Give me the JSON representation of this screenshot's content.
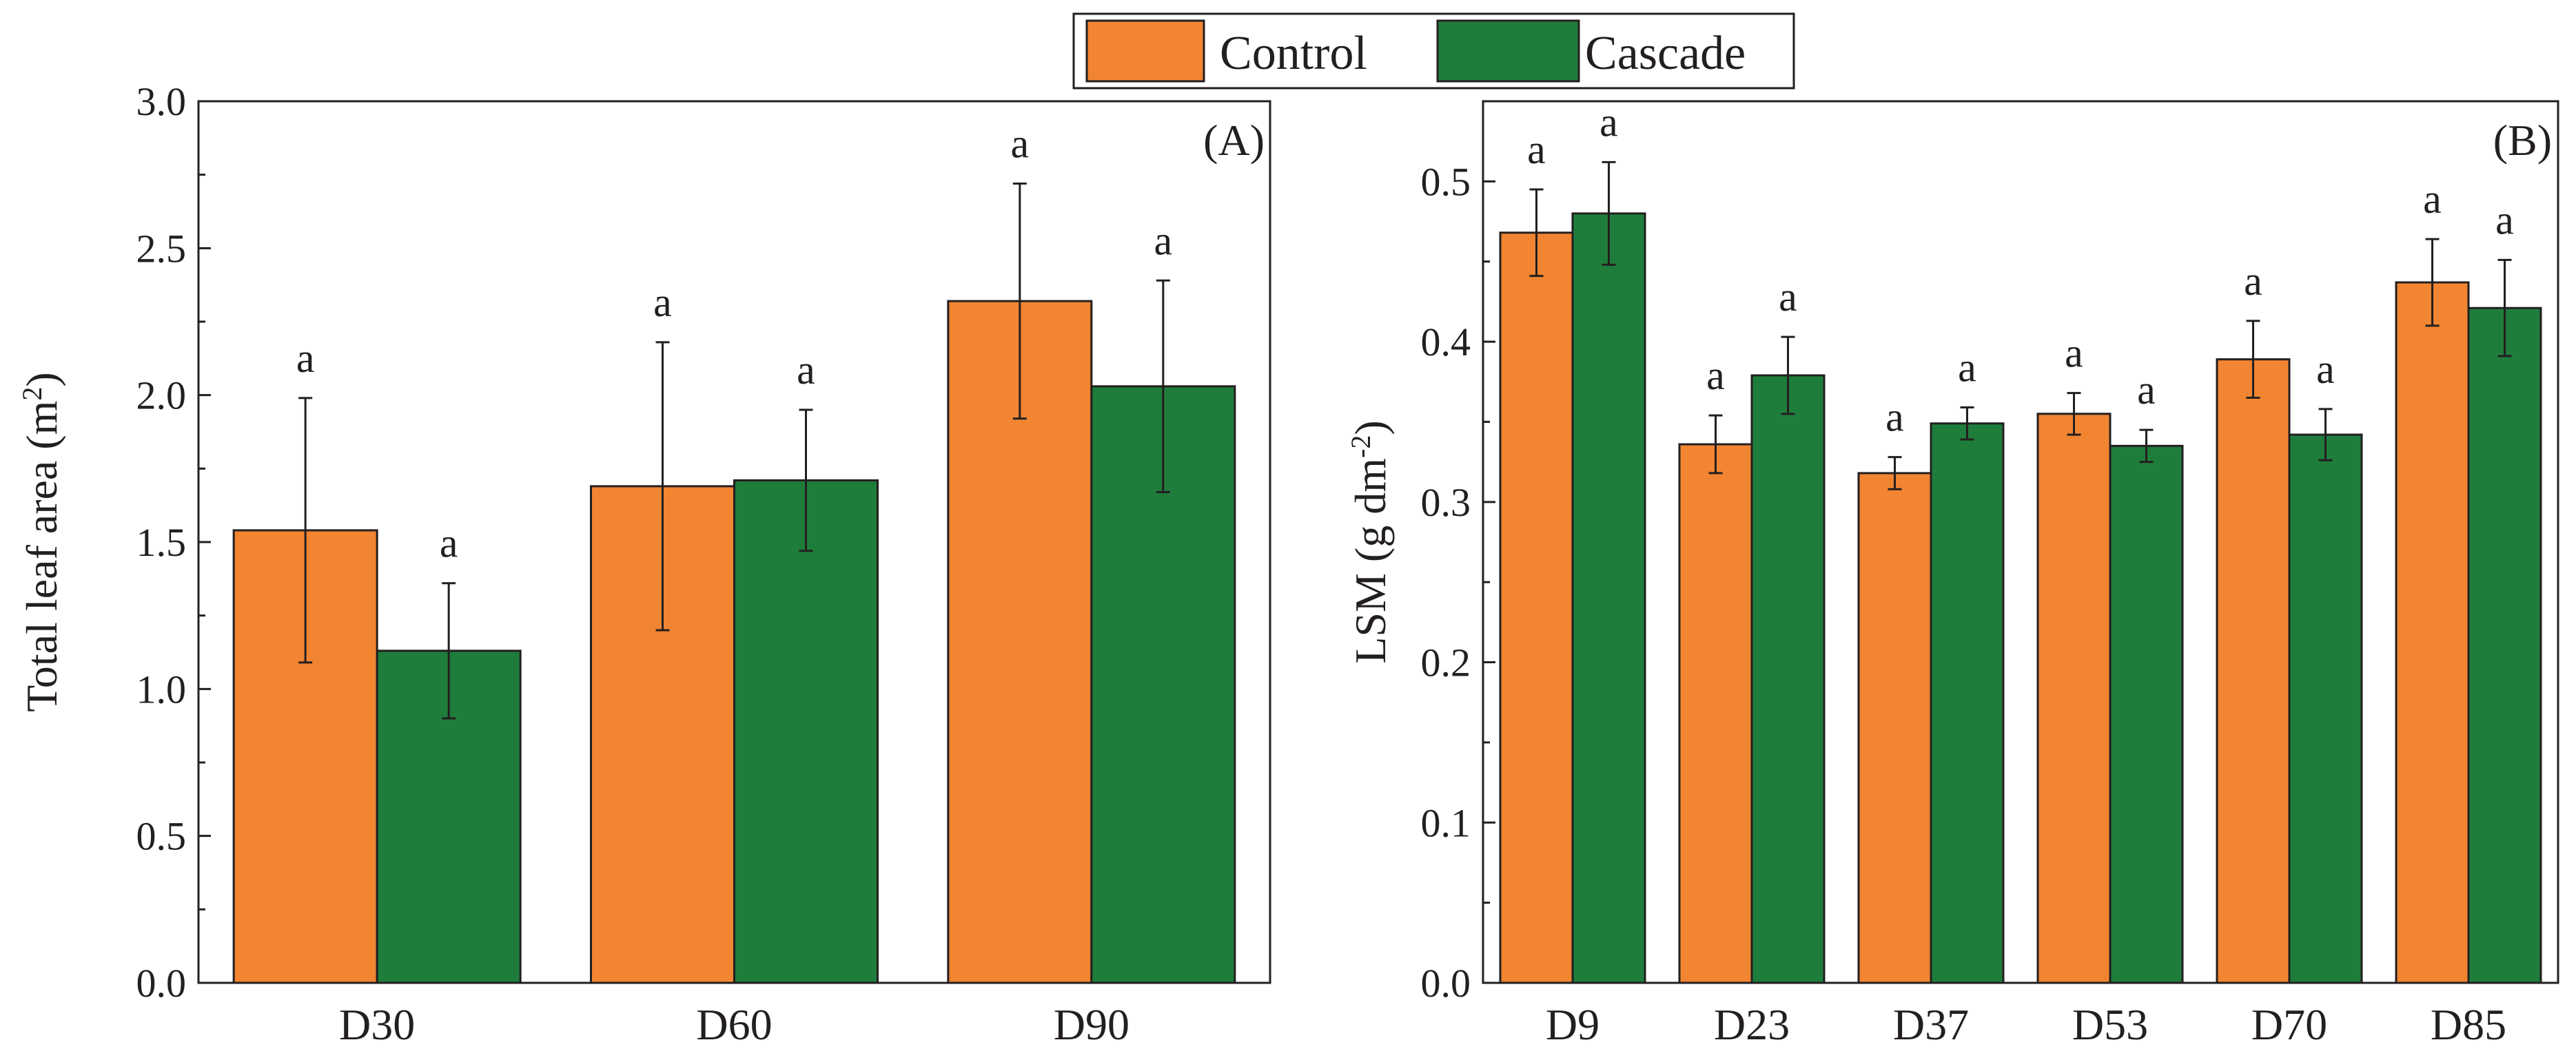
{
  "legend": {
    "entries": [
      {
        "name": "Control",
        "color": "#f18531"
      },
      {
        "name": "Cascade",
        "color": "#1f7d3b"
      }
    ]
  },
  "chart_data": [
    {
      "type": "bar",
      "panel": "(A)",
      "ylabel": "Total leaf area (m",
      "ylabel_sup": "2",
      "ylabel_end": ")",
      "xlabel": "",
      "ylim": [
        0,
        3.0
      ],
      "yticks": [
        "0.0",
        "0.5",
        "1.0",
        "1.5",
        "2.0",
        "2.5",
        "3.0"
      ],
      "categories": [
        "D30",
        "D60",
        "D90"
      ],
      "series": [
        {
          "name": "Control",
          "values": [
            1.54,
            1.69,
            2.32
          ],
          "errors": [
            0.45,
            0.49,
            0.4
          ],
          "letters": [
            "a",
            "a",
            "a"
          ]
        },
        {
          "name": "Cascade",
          "values": [
            1.13,
            1.71,
            2.03
          ],
          "errors": [
            0.23,
            0.24,
            0.36
          ],
          "letters": [
            "a",
            "a",
            "a"
          ]
        }
      ]
    },
    {
      "type": "bar",
      "panel": "(B)",
      "ylabel": "LSM (g dm",
      "ylabel_sup": "-2",
      "ylabel_end": ")",
      "xlabel": "",
      "ylim": [
        0,
        0.55
      ],
      "yticks": [
        "0.0",
        "0.1",
        "0.2",
        "0.3",
        "0.4",
        "0.5"
      ],
      "categories": [
        "D9",
        "D23",
        "D37",
        "D53",
        "D70",
        "D85"
      ],
      "series": [
        {
          "name": "Control",
          "values": [
            0.468,
            0.336,
            0.318,
            0.355,
            0.389,
            0.437
          ],
          "errors": [
            0.027,
            0.018,
            0.01,
            0.013,
            0.024,
            0.027
          ],
          "letters": [
            "a",
            "a",
            "a",
            "a",
            "a",
            "a"
          ]
        },
        {
          "name": "Cascade",
          "values": [
            0.48,
            0.379,
            0.349,
            0.335,
            0.342,
            0.421
          ],
          "errors": [
            0.032,
            0.024,
            0.01,
            0.01,
            0.016,
            0.03
          ],
          "letters": [
            "a",
            "a",
            "a",
            "a",
            "a",
            "a"
          ]
        }
      ]
    }
  ]
}
